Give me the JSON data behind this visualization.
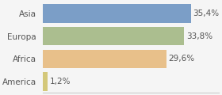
{
  "categories": [
    "Asia",
    "Europa",
    "Africa",
    "America"
  ],
  "values": [
    35.4,
    33.8,
    29.6,
    1.2
  ],
  "labels": [
    "35,4%",
    "33,8%",
    "29,6%",
    "1,2%"
  ],
  "bar_colors": [
    "#7b9ec7",
    "#abbe8f",
    "#e8c08a",
    "#d4c87a"
  ],
  "background_color": "#f5f5f5",
  "xlim": [
    0,
    42
  ],
  "bar_height": 0.82,
  "label_fontsize": 7.5,
  "tick_fontsize": 7.5
}
